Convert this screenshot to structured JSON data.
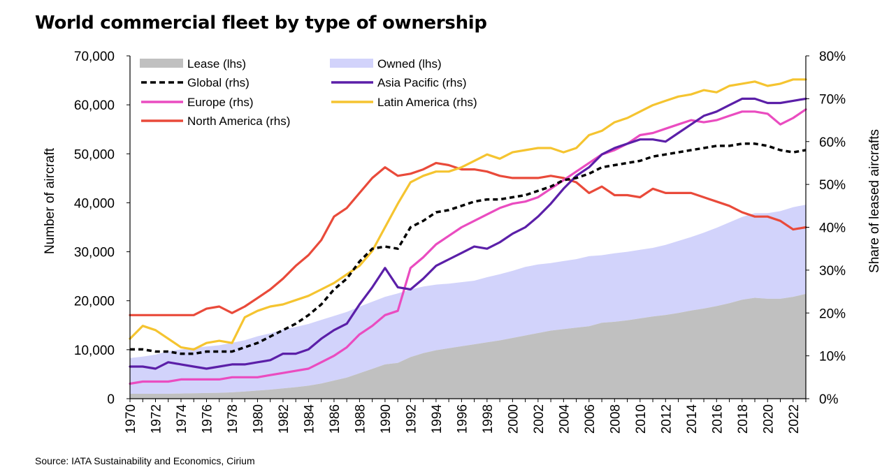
{
  "title": "World commercial fleet by type of ownership",
  "source": "Source: IATA Sustainability and Economics, Cirium",
  "chart_data": {
    "type": "area+line",
    "years": [
      1970,
      1971,
      1972,
      1973,
      1974,
      1975,
      1976,
      1977,
      1978,
      1979,
      1980,
      1981,
      1982,
      1983,
      1984,
      1985,
      1986,
      1987,
      1988,
      1989,
      1990,
      1991,
      1992,
      1993,
      1994,
      1995,
      1996,
      1997,
      1998,
      1999,
      2000,
      2001,
      2002,
      2003,
      2004,
      2005,
      2006,
      2007,
      2008,
      2009,
      2010,
      2011,
      2012,
      2013,
      2014,
      2015,
      2016,
      2017,
      2018,
      2019,
      2020,
      2021,
      2022,
      2023
    ],
    "x_tick_labels": [
      "1970",
      "1972",
      "1974",
      "1976",
      "1978",
      "1980",
      "1982",
      "1984",
      "1986",
      "1988",
      "1990",
      "1992",
      "1994",
      "1996",
      "1998",
      "2000",
      "2002",
      "2004",
      "2006",
      "2008",
      "2010",
      "2012",
      "2014",
      "2016",
      "2018",
      "2020",
      "2022"
    ],
    "left_axis": {
      "label": "Number of aircraft",
      "range": [
        0,
        70000
      ],
      "ticks": [
        "0",
        "10,000",
        "20,000",
        "30,000",
        "40,000",
        "50,000",
        "60,000",
        "70,000"
      ],
      "tick_values": [
        0,
        10000,
        20000,
        30000,
        40000,
        50000,
        60000,
        70000
      ]
    },
    "right_axis": {
      "label": "Share of leased aircrafts",
      "range": [
        0,
        80
      ],
      "ticks": [
        "0%",
        "10%",
        "20%",
        "30%",
        "40%",
        "50%",
        "60%",
        "70%",
        "80%"
      ],
      "tick_values": [
        0,
        10,
        20,
        30,
        40,
        50,
        60,
        70,
        80
      ]
    },
    "legend": {
      "lease": "Lease (lhs)",
      "owned": "Owned (lhs)",
      "global": "Global (rhs)",
      "asia": "Asia Pacific (rhs)",
      "europe": "Europe (rhs)",
      "latam": "Latin America (rhs)",
      "na": "North America (rhs)"
    },
    "series": [
      {
        "key": "lease",
        "name": "Lease (lhs)",
        "axis": "left",
        "kind": "area",
        "color": "#c0c0c0",
        "values": [
          1000,
          1000,
          1000,
          1000,
          1050,
          1100,
          1150,
          1200,
          1300,
          1450,
          1650,
          1850,
          2100,
          2350,
          2650,
          3100,
          3700,
          4300,
          5200,
          6100,
          7000,
          7300,
          8500,
          9300,
          9900,
          10300,
          10700,
          11100,
          11500,
          11900,
          12400,
          12900,
          13400,
          13900,
          14200,
          14500,
          14800,
          15500,
          15700,
          16000,
          16400,
          16800,
          17100,
          17500,
          18000,
          18400,
          18900,
          19500,
          20200,
          20600,
          20400,
          20400,
          20800,
          21400
        ]
      },
      {
        "key": "owned",
        "name": "Owned (lhs)",
        "axis": "left",
        "kind": "area",
        "color": "#d2d3fb",
        "values": [
          7300,
          7600,
          8000,
          8700,
          9000,
          9300,
          9500,
          9700,
          10100,
          10500,
          11100,
          11500,
          12000,
          12300,
          12600,
          13000,
          13200,
          13400,
          13600,
          13700,
          13800,
          14200,
          13800,
          13600,
          13400,
          13200,
          13100,
          13000,
          13300,
          13500,
          13700,
          14000,
          14000,
          13800,
          13900,
          14000,
          14300,
          13800,
          14000,
          14000,
          14000,
          14000,
          14300,
          14700,
          15000,
          15500,
          16000,
          16500,
          16900,
          17300,
          17500,
          17900,
          18300,
          18200
        ]
      },
      {
        "key": "global",
        "name": "Global (rhs)",
        "axis": "right",
        "kind": "line",
        "color": "#000000",
        "dashed": true,
        "values": [
          11.5,
          11.5,
          11.0,
          11.0,
          10.5,
          10.5,
          11.0,
          11.0,
          11.0,
          12.0,
          13.0,
          14.5,
          16.0,
          17.5,
          19.5,
          22.0,
          25.5,
          28.0,
          32.0,
          35.0,
          35.5,
          35.0,
          40.0,
          41.5,
          43.5,
          44.0,
          45.0,
          46.0,
          46.5,
          46.5,
          47.0,
          47.5,
          48.5,
          49.5,
          51.0,
          51.5,
          52.5,
          54.0,
          54.5,
          55.0,
          55.5,
          56.5,
          57.0,
          57.5,
          58.0,
          58.5,
          59.0,
          59.0,
          59.5,
          59.5,
          59.0,
          58.0,
          57.5,
          58.0
        ]
      },
      {
        "key": "asia",
        "name": "Asia Pacific (rhs)",
        "axis": "right",
        "kind": "line",
        "color": "#5b1fa8",
        "values": [
          7.5,
          7.5,
          7.0,
          8.5,
          8.0,
          7.5,
          7.0,
          7.5,
          8.0,
          8.0,
          8.5,
          9.0,
          10.5,
          10.5,
          11.5,
          14.0,
          16.0,
          17.5,
          22.0,
          26.0,
          30.5,
          26.0,
          25.5,
          28.0,
          31.0,
          32.5,
          34.0,
          35.5,
          35.0,
          36.5,
          38.5,
          40.0,
          42.5,
          45.5,
          49.0,
          52.0,
          54.0,
          57.0,
          58.5,
          59.5,
          60.5,
          60.5,
          60.0,
          62.0,
          64.0,
          66.0,
          67.0,
          68.5,
          70.0,
          70.0,
          69.0,
          69.0,
          69.5,
          70.0
        ]
      },
      {
        "key": "europe",
        "name": "Europe (rhs)",
        "axis": "right",
        "kind": "line",
        "color": "#ea4cc0",
        "values": [
          3.5,
          4.0,
          4.0,
          4.0,
          4.5,
          4.5,
          4.5,
          4.5,
          5.0,
          5.0,
          5.0,
          5.5,
          6.0,
          6.5,
          7.0,
          8.5,
          10.0,
          12.0,
          15.0,
          17.0,
          19.5,
          20.5,
          30.5,
          33.0,
          36.0,
          38.0,
          40.0,
          41.5,
          43.0,
          44.5,
          45.5,
          46.0,
          47.0,
          49.0,
          51.0,
          53.0,
          55.0,
          57.0,
          58.0,
          59.5,
          61.5,
          62.0,
          63.0,
          64.0,
          65.0,
          64.5,
          65.0,
          66.0,
          67.0,
          67.0,
          66.5,
          64.0,
          65.5,
          67.5
        ]
      },
      {
        "key": "latam",
        "name": "Latin America (rhs)",
        "axis": "right",
        "kind": "line",
        "color": "#f5c430",
        "values": [
          14.0,
          17.0,
          16.0,
          14.0,
          12.0,
          11.5,
          13.0,
          13.5,
          13.0,
          19.0,
          20.5,
          21.5,
          22.0,
          23.0,
          24.0,
          25.5,
          27.0,
          29.0,
          31.0,
          34.5,
          40.0,
          45.5,
          50.5,
          52.0,
          53.0,
          53.0,
          54.0,
          55.5,
          57.0,
          56.0,
          57.5,
          58.0,
          58.5,
          58.5,
          57.5,
          58.5,
          61.5,
          62.5,
          64.5,
          65.5,
          67.0,
          68.5,
          69.5,
          70.5,
          71.0,
          72.0,
          71.5,
          73.0,
          73.5,
          74.0,
          73.0,
          73.5,
          74.5,
          74.5
        ]
      },
      {
        "key": "na",
        "name": "North America (rhs)",
        "axis": "right",
        "kind": "line",
        "color": "#e94a3a",
        "values": [
          19.5,
          19.5,
          19.5,
          19.5,
          19.5,
          19.5,
          21.0,
          21.5,
          20.0,
          21.5,
          23.5,
          25.5,
          28.0,
          31.0,
          33.5,
          37.0,
          42.5,
          44.5,
          48.0,
          51.5,
          54.0,
          52.0,
          52.5,
          53.5,
          55.0,
          54.5,
          53.5,
          53.5,
          53.0,
          52.0,
          51.5,
          51.5,
          51.5,
          52.0,
          51.5,
          50.5,
          48.0,
          49.5,
          47.5,
          47.5,
          47.0,
          49.0,
          48.0,
          48.0,
          48.0,
          47.0,
          46.0,
          45.0,
          43.5,
          42.5,
          42.5,
          41.5,
          39.5,
          40.0
        ]
      }
    ]
  }
}
